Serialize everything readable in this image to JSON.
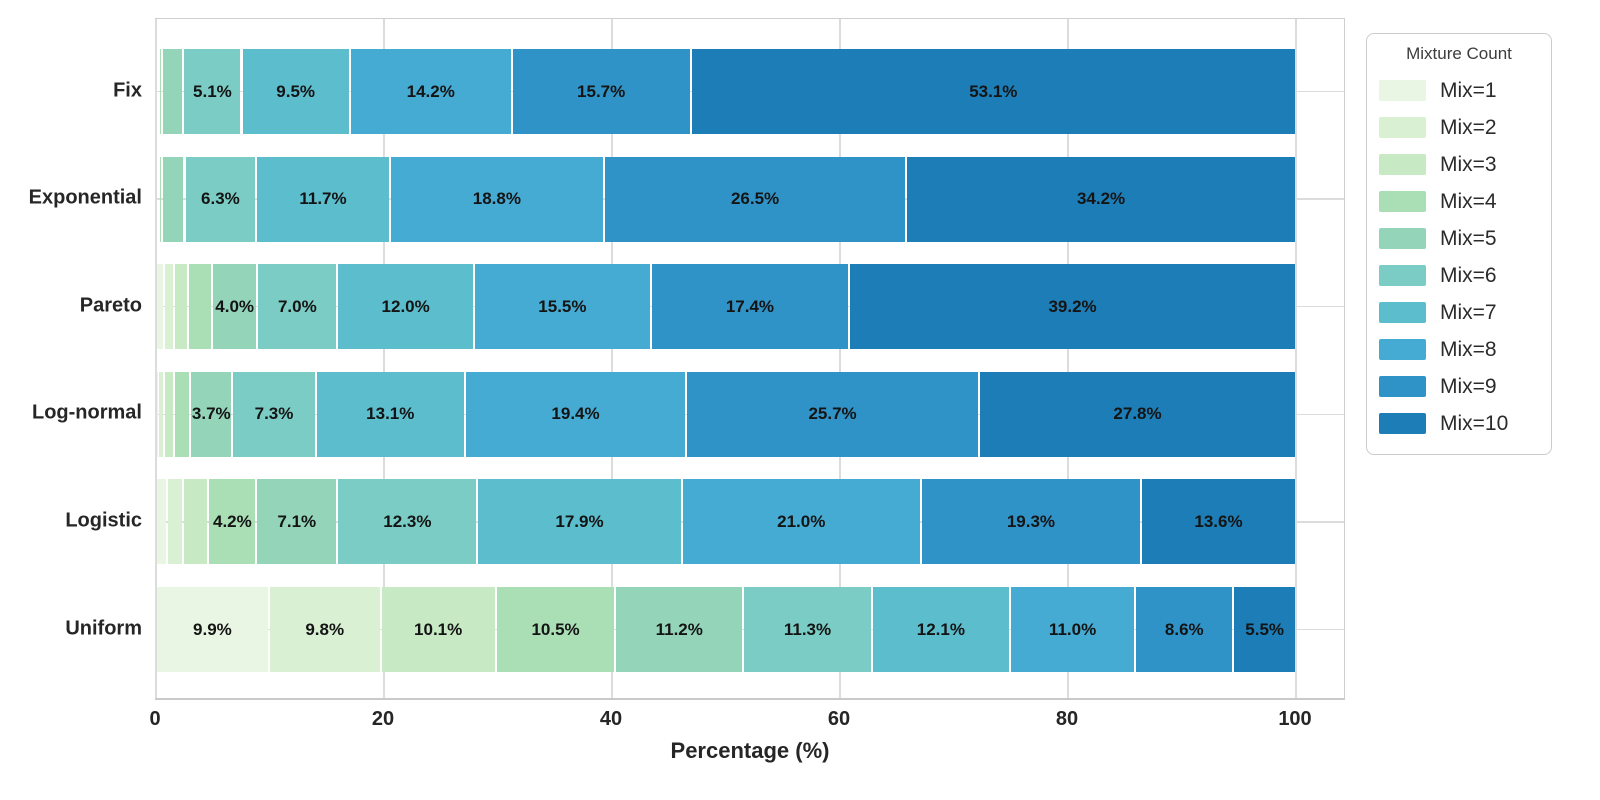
{
  "chart_data": {
    "type": "bar",
    "variant": "horizontal_stacked_percentage",
    "title": "",
    "xlabel": "Percentage (%)",
    "ylabel": "",
    "xlim": [
      0,
      100
    ],
    "xticks": [
      0,
      20,
      40,
      60,
      80,
      100
    ],
    "grid": true,
    "categories": [
      "Fix",
      "Exponential",
      "Pareto",
      "Log-normal",
      "Logistic",
      "Uniform"
    ],
    "legend": {
      "title": "Mixture Count",
      "position": "outside-upper-right"
    },
    "series": [
      {
        "name": "Mix=1",
        "color": "#e8f6e3",
        "values": [
          0.1,
          0.1,
          0.7,
          0.2,
          1.0,
          9.9
        ]
      },
      {
        "name": "Mix=2",
        "color": "#d9f0d3",
        "values": [
          0.1,
          0.1,
          0.9,
          0.5,
          1.4,
          9.8
        ]
      },
      {
        "name": "Mix=3",
        "color": "#c7e9c3",
        "values": [
          0.1,
          0.1,
          1.2,
          0.9,
          2.2,
          10.1
        ]
      },
      {
        "name": "Mix=4",
        "color": "#aadfb6",
        "values": [
          0.2,
          0.2,
          2.1,
          1.4,
          4.2,
          10.5
        ]
      },
      {
        "name": "Mix=5",
        "color": "#94d5ba",
        "values": [
          1.9,
          2.0,
          4.0,
          3.7,
          7.1,
          11.2
        ]
      },
      {
        "name": "Mix=6",
        "color": "#7bccc4",
        "values": [
          5.1,
          6.3,
          7.0,
          7.3,
          12.3,
          11.3
        ]
      },
      {
        "name": "Mix=7",
        "color": "#5cbdcd",
        "values": [
          9.5,
          11.7,
          12.0,
          13.1,
          17.9,
          12.1
        ]
      },
      {
        "name": "Mix=8",
        "color": "#45abd3",
        "values": [
          14.2,
          18.8,
          15.5,
          19.4,
          21.0,
          11.0
        ]
      },
      {
        "name": "Mix=9",
        "color": "#3093c7",
        "values": [
          15.7,
          26.5,
          17.4,
          25.7,
          19.3,
          8.6
        ]
      },
      {
        "name": "Mix=10",
        "color": "#1d7db7",
        "values": [
          53.1,
          34.2,
          39.2,
          27.8,
          13.6,
          5.5
        ]
      }
    ],
    "label_format": "{value}%",
    "show_labels_from": 3.5
  }
}
